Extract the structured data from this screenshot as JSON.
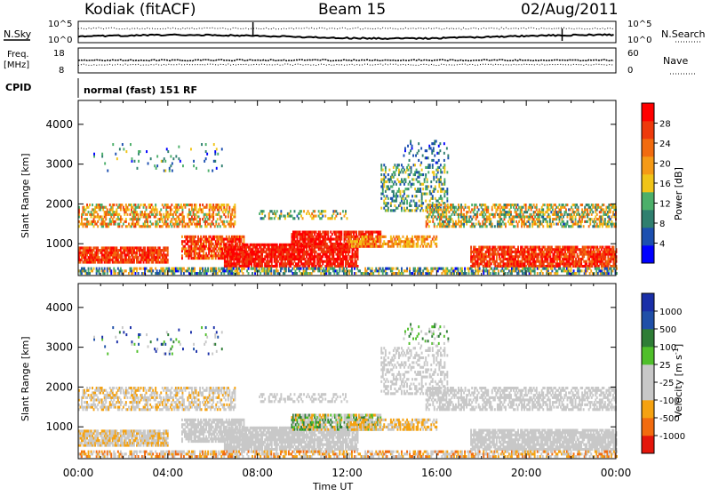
{
  "header": {
    "station": "Kodiak (fitACF)",
    "beam": "Beam 15",
    "date": "02/Aug/2011"
  },
  "noise_panel": {
    "left_label": "N.Sky",
    "right_label": "N.Search",
    "ticks_left": [
      "10^5",
      "10^0"
    ],
    "ticks_right": [
      "10^5",
      "10^0"
    ]
  },
  "freq_panel": {
    "left_label_1": "Freq.",
    "left_label_2": "[MHz]",
    "right_label": "Nave",
    "ticks_left": [
      "18",
      "8"
    ],
    "ticks_right": [
      "60",
      "0"
    ]
  },
  "cpid_panel": {
    "label": "CPID",
    "value": "normal (fast) 151 RF"
  },
  "colors": {
    "power": [
      "#0000ff",
      "#1c4fb0",
      "#2f7f6f",
      "#4caf6a",
      "#f0c419",
      "#f59a16",
      "#f26b0f",
      "#ee3a0c",
      "#ff0000"
    ],
    "velocity": [
      "#e4160b",
      "#f26b0f",
      "#f5a211",
      "#c8c8c8",
      "#c8c8c8",
      "#4fbf2a",
      "#2e7d36",
      "#1f4fa8",
      "#1a2fa8"
    ]
  },
  "chart_data": [
    {
      "type": "heatmap",
      "name": "power",
      "xlabel": "Time UT",
      "ylabel": "Slant Range [km]",
      "xticks": [
        "00:00",
        "04:00",
        "08:00",
        "12:00",
        "16:00",
        "20:00",
        "00:00"
      ],
      "yticks": [
        "1000",
        "2000",
        "3000",
        "4000"
      ],
      "xlim": [
        0,
        24
      ],
      "ylim": [
        200,
        4600
      ],
      "colorbar_label": "Power [dB]",
      "colorbar_ticks": [
        "4",
        "8",
        "12",
        "16",
        "20",
        "24",
        "28"
      ],
      "colorbar_range": [
        0,
        30
      ]
    },
    {
      "type": "heatmap",
      "name": "velocity",
      "xlabel": "Time UT",
      "ylabel": "Slant Range [km]",
      "xticks": [
        "00:00",
        "04:00",
        "08:00",
        "12:00",
        "16:00",
        "20:00",
        "00:00"
      ],
      "yticks": [
        "1000",
        "2000",
        "3000",
        "4000"
      ],
      "xlim": [
        0,
        24
      ],
      "ylim": [
        200,
        4600
      ],
      "colorbar_label": "Velocity [m s",
      "colorbar_label_sup": "-1",
      "colorbar_label_end": "]",
      "colorbar_ticks": [
        "1000",
        "500",
        "100",
        "25",
        "-25",
        "-100",
        "-500",
        "-1000"
      ]
    }
  ],
  "footer": {
    "xlabel": "Time UT"
  }
}
